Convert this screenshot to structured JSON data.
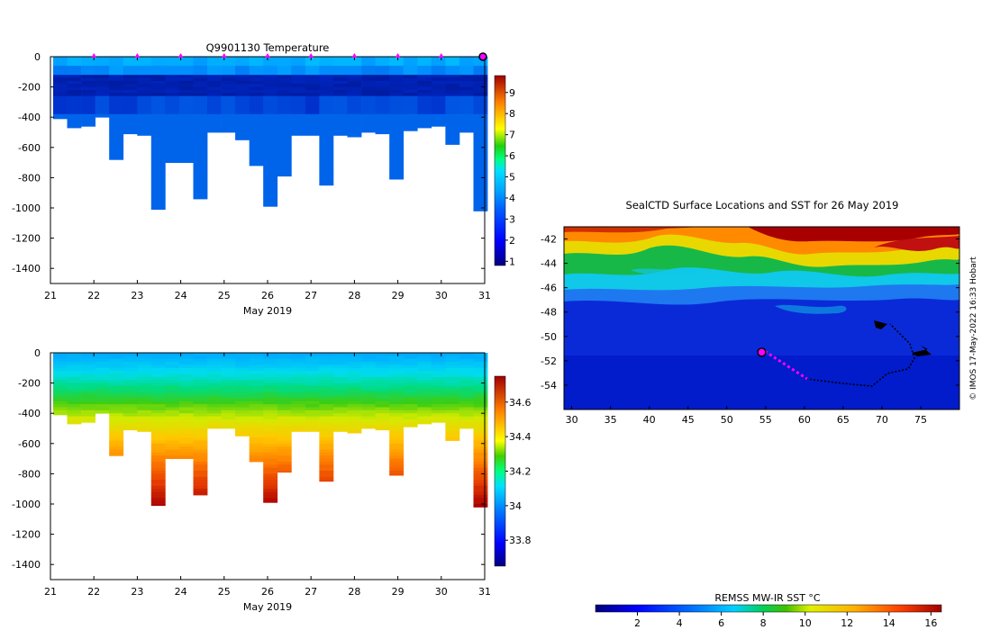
{
  "chart_data": [
    {
      "id": "temperature",
      "type": "heatmap",
      "title": "Q9901130  Temperature",
      "xlabel": "May 2019",
      "ylabel": "",
      "xlim": [
        21,
        31
      ],
      "ylim": [
        -1500,
        0
      ],
      "xticks": [
        "21",
        "22",
        "23",
        "24",
        "25",
        "26",
        "27",
        "28",
        "29",
        "30",
        "31"
      ],
      "yticks": [
        "0",
        "-200",
        "-400",
        "-600",
        "-800",
        "-1000",
        "-1200",
        "-1400"
      ],
      "ytick_values": [
        0,
        -200,
        -400,
        -600,
        -800,
        -1000,
        -1200,
        -1400
      ],
      "colorbar": {
        "min": 0.8,
        "max": 9.8,
        "ticks": [
          "1",
          "2",
          "3",
          "4",
          "5",
          "6",
          "7",
          "8",
          "9"
        ],
        "tick_values": [
          1,
          2,
          3,
          4,
          5,
          6,
          7,
          8,
          9
        ]
      },
      "profile_markers": [
        22,
        23,
        24,
        25,
        26,
        27,
        28,
        29,
        30
      ],
      "marker_color": "#ff00ff",
      "last_position": 31
    },
    {
      "id": "salinity",
      "type": "heatmap",
      "title": "",
      "xlabel": "May 2019",
      "ylabel": "",
      "xlim": [
        21,
        31
      ],
      "ylim": [
        -1500,
        0
      ],
      "xticks": [
        "21",
        "22",
        "23",
        "24",
        "25",
        "26",
        "27",
        "28",
        "29",
        "30",
        "31"
      ],
      "yticks": [
        "0",
        "-200",
        "-400",
        "-600",
        "-800",
        "-1000",
        "-1200",
        "-1400"
      ],
      "ytick_values": [
        0,
        -200,
        -400,
        -600,
        -800,
        -1000,
        -1200,
        -1400
      ],
      "colorbar": {
        "min": 33.65,
        "max": 34.75,
        "ticks": [
          "33.8",
          "34",
          "34.2",
          "34.4",
          "34.6"
        ],
        "tick_values": [
          33.8,
          34.0,
          34.2,
          34.4,
          34.6
        ]
      }
    },
    {
      "id": "sst_map",
      "type": "heatmap",
      "title": "SealCTD Surface Locations and SST for 26 May 2019",
      "xlim": [
        29,
        80
      ],
      "ylim": [
        -56,
        -41
      ],
      "xticks": [
        "30",
        "35",
        "40",
        "45",
        "50",
        "55",
        "60",
        "65",
        "70",
        "75"
      ],
      "xtick_values": [
        30,
        35,
        40,
        45,
        50,
        55,
        60,
        65,
        70,
        75
      ],
      "yticks": [
        "-42",
        "-44",
        "-46",
        "-48",
        "-50",
        "-52",
        "-54"
      ],
      "ytick_values": [
        -42,
        -44,
        -46,
        -48,
        -50,
        -52,
        -54
      ],
      "credit": "© IMOS 17-May-2022 16:33 Hobart",
      "current_position": {
        "lon": 54.5,
        "lat": -51.3
      },
      "colorbar": {
        "label": "REMSS MW-IR SST °C",
        "min": 0,
        "max": 16.5,
        "ticks": [
          "2",
          "4",
          "6",
          "8",
          "10",
          "12",
          "14",
          "16"
        ],
        "tick_values": [
          2,
          4,
          6,
          8,
          10,
          12,
          14,
          16
        ]
      }
    }
  ],
  "profile_bottom_depths": [
    -410,
    -470,
    -460,
    -400,
    -680,
    -510,
    -520,
    -1010,
    -700,
    -700,
    -940,
    -500,
    -500,
    -550,
    -720,
    -990,
    -790,
    -520,
    -520,
    -850,
    -520,
    -530,
    -500,
    -510,
    -810,
    -490,
    -470,
    -460,
    -580,
    -500,
    -1020
  ]
}
